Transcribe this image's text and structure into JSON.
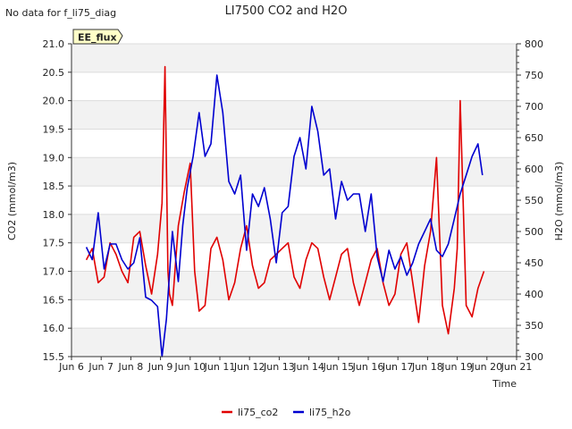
{
  "chart_data": {
    "type": "line",
    "title": "LI7500 CO2 and H2O",
    "subtitle": "No data for f_li75_diag",
    "badge": "EE_flux",
    "xlabel": "Time",
    "ylabel_left": "CO2 (mmol/m3)",
    "ylabel_right": "H2O (mmol/m3)",
    "xlim": [
      6,
      21
    ],
    "ylim_left": [
      15.5,
      21.0
    ],
    "ylim_right": [
      300,
      800
    ],
    "x_ticks": [
      {
        "x": 6,
        "label": "Jun 6"
      },
      {
        "x": 7,
        "label": "Jun 7"
      },
      {
        "x": 8,
        "label": "Jun 8"
      },
      {
        "x": 9,
        "label": "Jun 9"
      },
      {
        "x": 10,
        "label": "Jun 10"
      },
      {
        "x": 11,
        "label": "Jun 11"
      },
      {
        "x": 12,
        "label": "Jun 12"
      },
      {
        "x": 13,
        "label": "Jun 13"
      },
      {
        "x": 14,
        "label": "Jun 14"
      },
      {
        "x": 15,
        "label": "Jun 15"
      },
      {
        "x": 16,
        "label": "Jun 16"
      },
      {
        "x": 17,
        "label": "Jun 17"
      },
      {
        "x": 18,
        "label": "Jun 18"
      },
      {
        "x": 19,
        "label": "Jun 19"
      },
      {
        "x": 20,
        "label": "Jun 20"
      },
      {
        "x": 21,
        "label": "Jun 21"
      }
    ],
    "y_ticks_left": [
      "15.5",
      "16.0",
      "16.5",
      "17.0",
      "17.5",
      "18.0",
      "18.5",
      "19.0",
      "19.5",
      "20.0",
      "20.5",
      "21.0"
    ],
    "y_ticks_right": [
      "300",
      "350",
      "400",
      "450",
      "500",
      "550",
      "600",
      "650",
      "700",
      "750",
      "800"
    ],
    "legend_position": "bottom-center",
    "series": [
      {
        "name": "li75_co2",
        "axis": "left",
        "color": "#e00000",
        "x": [
          6.5,
          6.7,
          6.9,
          7.1,
          7.3,
          7.5,
          7.7,
          7.9,
          8.1,
          8.3,
          8.5,
          8.7,
          8.9,
          9.05,
          9.15,
          9.25,
          9.3,
          9.4,
          9.6,
          9.8,
          10.0,
          10.15,
          10.3,
          10.5,
          10.7,
          10.9,
          11.1,
          11.3,
          11.5,
          11.7,
          11.9,
          12.1,
          12.3,
          12.5,
          12.7,
          12.9,
          13.1,
          13.3,
          13.5,
          13.7,
          13.9,
          14.1,
          14.3,
          14.5,
          14.7,
          14.9,
          15.1,
          15.3,
          15.5,
          15.7,
          15.9,
          16.1,
          16.3,
          16.5,
          16.7,
          16.9,
          17.1,
          17.3,
          17.5,
          17.7,
          17.9,
          18.1,
          18.3,
          18.5,
          18.7,
          18.9,
          19.0,
          19.1,
          19.3,
          19.5,
          19.7,
          19.9
        ],
        "values": [
          17.2,
          17.4,
          16.8,
          16.9,
          17.5,
          17.3,
          17.0,
          16.8,
          17.6,
          17.7,
          17.1,
          16.6,
          17.3,
          18.2,
          20.6,
          17.0,
          16.6,
          16.4,
          17.8,
          18.4,
          18.9,
          17.0,
          16.3,
          16.4,
          17.4,
          17.6,
          17.2,
          16.5,
          16.8,
          17.4,
          17.8,
          17.1,
          16.7,
          16.8,
          17.2,
          17.3,
          17.4,
          17.5,
          16.9,
          16.7,
          17.2,
          17.5,
          17.4,
          16.9,
          16.5,
          16.9,
          17.3,
          17.4,
          16.8,
          16.4,
          16.8,
          17.2,
          17.4,
          16.8,
          16.4,
          16.6,
          17.3,
          17.5,
          16.8,
          16.1,
          17.1,
          17.7,
          19.0,
          16.4,
          15.9,
          16.7,
          17.4,
          20.0,
          16.4,
          16.2,
          16.7,
          17.0
        ]
      },
      {
        "name": "li75_h2o",
        "axis": "right",
        "color": "#0000d0",
        "x": [
          6.5,
          6.7,
          6.9,
          7.1,
          7.3,
          7.5,
          7.7,
          7.9,
          8.1,
          8.3,
          8.5,
          8.7,
          8.9,
          9.05,
          9.2,
          9.4,
          9.6,
          9.75,
          9.9,
          10.1,
          10.3,
          10.5,
          10.7,
          10.9,
          11.1,
          11.3,
          11.5,
          11.7,
          11.9,
          12.1,
          12.3,
          12.5,
          12.7,
          12.9,
          13.1,
          13.3,
          13.5,
          13.7,
          13.9,
          14.1,
          14.3,
          14.5,
          14.7,
          14.9,
          15.1,
          15.3,
          15.5,
          15.7,
          15.9,
          16.1,
          16.3,
          16.5,
          16.7,
          16.9,
          17.1,
          17.3,
          17.5,
          17.7,
          17.9,
          18.1,
          18.3,
          18.5,
          18.7,
          18.9,
          19.1,
          19.3,
          19.5,
          19.7,
          19.85
        ],
        "values": [
          475,
          455,
          530,
          440,
          480,
          480,
          455,
          440,
          450,
          490,
          395,
          390,
          380,
          300,
          360,
          500,
          420,
          510,
          570,
          620,
          690,
          620,
          640,
          750,
          690,
          580,
          560,
          590,
          470,
          560,
          540,
          570,
          520,
          450,
          530,
          540,
          620,
          650,
          600,
          700,
          660,
          590,
          600,
          520,
          580,
          550,
          560,
          560,
          500,
          560,
          460,
          420,
          470,
          440,
          460,
          430,
          450,
          480,
          500,
          520,
          470,
          460,
          480,
          520,
          560,
          590,
          620,
          640,
          590
        ]
      }
    ]
  }
}
